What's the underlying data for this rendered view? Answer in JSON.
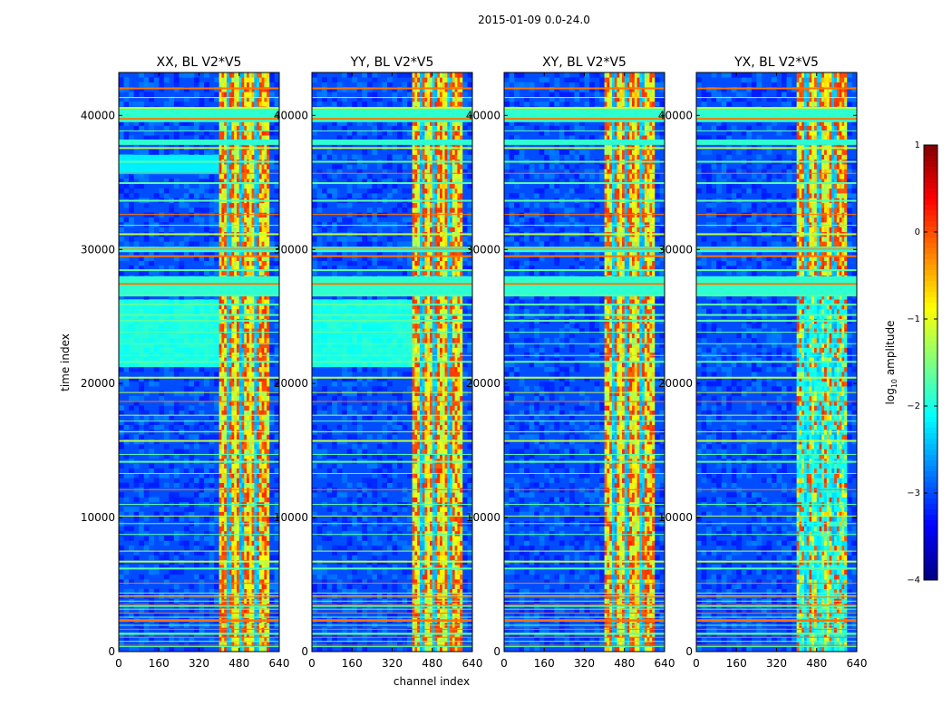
{
  "chart_data": {
    "type": "heatmap",
    "title": "2015-01-09 0.0-24.0",
    "xlabel": "channel index",
    "ylabel": "time index",
    "xlim": [
      0,
      640
    ],
    "ylim": [
      0,
      43200
    ],
    "xticks": [
      0,
      160,
      320,
      480,
      640
    ],
    "yticks": [
      0,
      10000,
      20000,
      30000,
      40000
    ],
    "panels": [
      {
        "title": "XX, BL V2*V5",
        "polarization": "XX",
        "baseline": "V2*V5"
      },
      {
        "title": "YY, BL V2*V5",
        "polarization": "YY",
        "baseline": "V2*V5"
      },
      {
        "title": "XY, BL V2*V5",
        "polarization": "XY",
        "baseline": "V2*V5"
      },
      {
        "title": "YX, BL V2*V5",
        "polarization": "YX",
        "baseline": "V2*V5"
      }
    ],
    "colorbar": {
      "label": "log10 amplitude",
      "label_base": "log",
      "label_sub": "10",
      "label_rest": " amplitude",
      "range": [
        -4,
        1
      ],
      "ticks": [
        1,
        0,
        -1,
        -2,
        -3,
        -4
      ],
      "tick_labels": [
        "1",
        "0",
        "−1",
        "−2",
        "−3",
        "−4"
      ],
      "colormap": "jet"
    },
    "features": {
      "band_channels": [
        400,
        600
      ],
      "band_bright_channels": [
        405,
        420,
        445,
        470,
        495,
        510,
        530,
        555,
        575,
        590
      ],
      "band_dark_channels": [
        435,
        485,
        545
      ],
      "flagged_time_ranges": [
        [
          26500,
          28000
        ],
        [
          39500,
          40500
        ],
        [
          29800,
          30200
        ],
        [
          37800,
          38200
        ]
      ],
      "cross_pol_band_fade_below_time": 26500,
      "base_level": -3.0,
      "band_level": -1.0
    }
  }
}
